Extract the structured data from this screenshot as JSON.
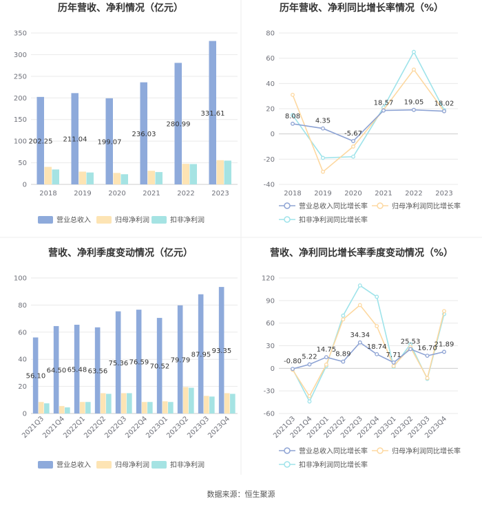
{
  "source": "数据来源：恒生聚源",
  "colors": {
    "revenue": "#8eaadb",
    "net_profit": "#fde4b4",
    "deducted_profit": "#a5e3e3",
    "revenue_line": "#8da3d4",
    "net_line": "#fdd8a0",
    "deducted_line": "#9ee3ea"
  },
  "chart_data": [
    {
      "id": "annual-bars",
      "type": "bar",
      "title": "历年营收、净利情况（亿元）",
      "categories": [
        "2018",
        "2019",
        "2020",
        "2021",
        "2022",
        "2023"
      ],
      "ylim": [
        0,
        350
      ],
      "yticks": [
        0,
        50,
        100,
        150,
        200,
        250,
        300,
        350
      ],
      "series": [
        {
          "name": "营业总收入",
          "values": [
            202.25,
            211.04,
            199.07,
            236.03,
            280.99,
            331.61
          ],
          "labels": [
            "202.25",
            "211.04",
            "199.07",
            "236.03",
            "280.99",
            "331.61"
          ]
        },
        {
          "name": "归母净利润",
          "values": [
            40.5,
            29.5,
            26.5,
            31.5,
            47.5,
            56.0
          ]
        },
        {
          "name": "扣非净利润",
          "values": [
            34.5,
            27.5,
            23.5,
            28.5,
            47.0,
            55.0
          ]
        }
      ]
    },
    {
      "id": "annual-lines",
      "type": "line",
      "title": "历年营收、净利同比增长率情况（%）",
      "categories": [
        "2018",
        "2019",
        "2020",
        "2021",
        "2022",
        "2023"
      ],
      "ylim": [
        -40,
        80
      ],
      "yticks": [
        -40,
        -20,
        0,
        20,
        40,
        60,
        80
      ],
      "series": [
        {
          "name": "营业总收入同比增长率",
          "values": [
            8.08,
            4.35,
            -5.67,
            18.57,
            19.05,
            18.02
          ],
          "labels": [
            "8.08",
            "4.35",
            "-5.67",
            "18.57",
            "19.05",
            "18.02"
          ]
        },
        {
          "name": "归母净利润同比增长率",
          "values": [
            31.0,
            -30.0,
            -10.0,
            19.0,
            51.0,
            18.0
          ]
        },
        {
          "name": "扣非净利润同比增长率",
          "values": [
            15.0,
            -19.0,
            -18.0,
            21.0,
            65.0,
            19.0
          ]
        }
      ]
    },
    {
      "id": "quarterly-bars",
      "type": "bar",
      "title": "营收、净利季度变动情况（亿元）",
      "categories": [
        "2021Q3",
        "2021Q4",
        "2022Q1",
        "2022Q2",
        "2022Q3",
        "2022Q4",
        "2023Q1",
        "2023Q2",
        "2023Q3",
        "2023Q4"
      ],
      "ylim": [
        0,
        100
      ],
      "yticks": [
        0,
        20,
        40,
        60,
        80,
        100
      ],
      "series": [
        {
          "name": "营业总收入",
          "values": [
            56.1,
            64.5,
            65.48,
            63.56,
            75.36,
            76.59,
            70.52,
            79.79,
            87.95,
            93.35
          ],
          "labels": [
            "56.10",
            "64.50",
            "65.48",
            "63.56",
            "75.36",
            "76.59",
            "70.52",
            "79.79",
            "87.95",
            "93.35"
          ]
        },
        {
          "name": "归母净利润",
          "values": [
            8.5,
            5.5,
            8.5,
            15.0,
            15.0,
            8.5,
            9.0,
            19.5,
            13.0,
            15.0
          ]
        },
        {
          "name": "扣非净利润",
          "values": [
            7.5,
            4.5,
            8.5,
            14.5,
            15.0,
            8.5,
            8.5,
            19.0,
            12.5,
            14.5
          ]
        }
      ]
    },
    {
      "id": "quarterly-lines",
      "type": "line",
      "title": "营收、净利同比增长率季度变动情况（%）",
      "categories": [
        "2021Q3",
        "2021Q4",
        "2022Q1",
        "2022Q2",
        "2022Q3",
        "2022Q4",
        "2023Q1",
        "2023Q2",
        "2023Q3",
        "2023Q4"
      ],
      "ylim": [
        -60,
        120
      ],
      "yticks": [
        -60,
        -30,
        0,
        30,
        60,
        90,
        120
      ],
      "series": [
        {
          "name": "营业总收入同比增长率",
          "values": [
            -0.8,
            5.22,
            14.75,
            8.89,
            34.34,
            18.74,
            7.71,
            25.53,
            16.7,
            21.89
          ],
          "labels": [
            "-0.80",
            "5.22",
            "14.75",
            "8.89",
            "34.34",
            "18.74",
            "7.71",
            "25.53",
            "16.70",
            "21.89"
          ]
        },
        {
          "name": "归母净利润同比增长率",
          "values": [
            -2.0,
            -37.0,
            5.0,
            65.0,
            84.0,
            56.0,
            3.0,
            28.0,
            -13.0,
            76.0
          ]
        },
        {
          "name": "扣非净利润同比增长率",
          "values": [
            -1.0,
            -44.0,
            3.0,
            70.0,
            110.0,
            95.0,
            2.0,
            32.0,
            -14.0,
            72.0
          ]
        }
      ]
    }
  ]
}
